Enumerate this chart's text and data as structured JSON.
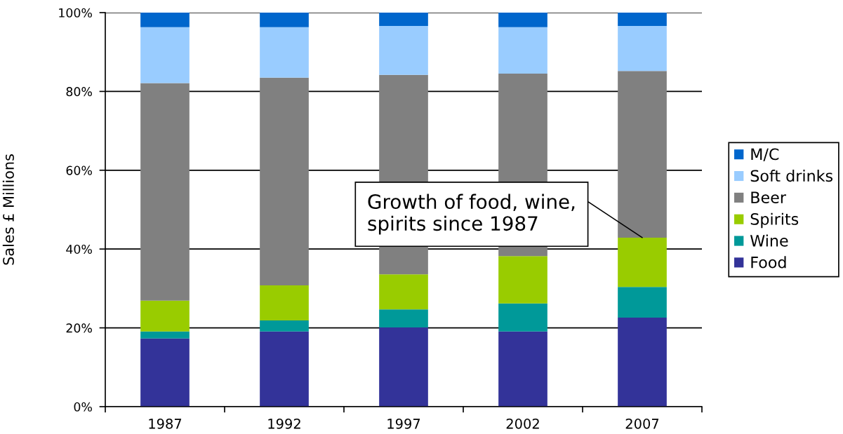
{
  "chart_data": {
    "type": "bar",
    "stacked": true,
    "ylabel": "Sales £ Millions",
    "categories": [
      "1987",
      "1992",
      "1997",
      "2002",
      "2007"
    ],
    "series": [
      {
        "name": "Food",
        "color": "#333399",
        "values": [
          17.3,
          19.1,
          20.1,
          19.1,
          22.6
        ]
      },
      {
        "name": "Wine",
        "color": "#009999",
        "values": [
          1.8,
          2.8,
          4.6,
          7.1,
          7.8
        ]
      },
      {
        "name": "Spirits",
        "color": "#99cc00",
        "values": [
          7.8,
          8.9,
          8.9,
          12.0,
          12.5
        ]
      },
      {
        "name": "Beer",
        "color": "#808080",
        "values": [
          55.2,
          52.7,
          50.6,
          46.3,
          42.3
        ]
      },
      {
        "name": "Soft drinks",
        "color": "#99ccff",
        "values": [
          14.2,
          12.8,
          12.4,
          11.8,
          11.4
        ]
      },
      {
        "name": "M/C",
        "color": "#0066cc",
        "values": [
          3.7,
          3.7,
          3.4,
          3.7,
          3.4
        ]
      }
    ],
    "ylim": [
      0,
      100
    ],
    "yticks": [
      {
        "value": 0,
        "label": "0%"
      },
      {
        "value": 20,
        "label": "20%"
      },
      {
        "value": 40,
        "label": "40%"
      },
      {
        "value": 60,
        "label": "60%"
      },
      {
        "value": 80,
        "label": "80%"
      },
      {
        "value": 100,
        "label": "100%"
      }
    ],
    "grid": "y",
    "legend": "right",
    "annotations": [
      {
        "text": "Growth of food, wine,\nspirits since 1987",
        "x": "2007",
        "y": 42.9
      }
    ]
  }
}
